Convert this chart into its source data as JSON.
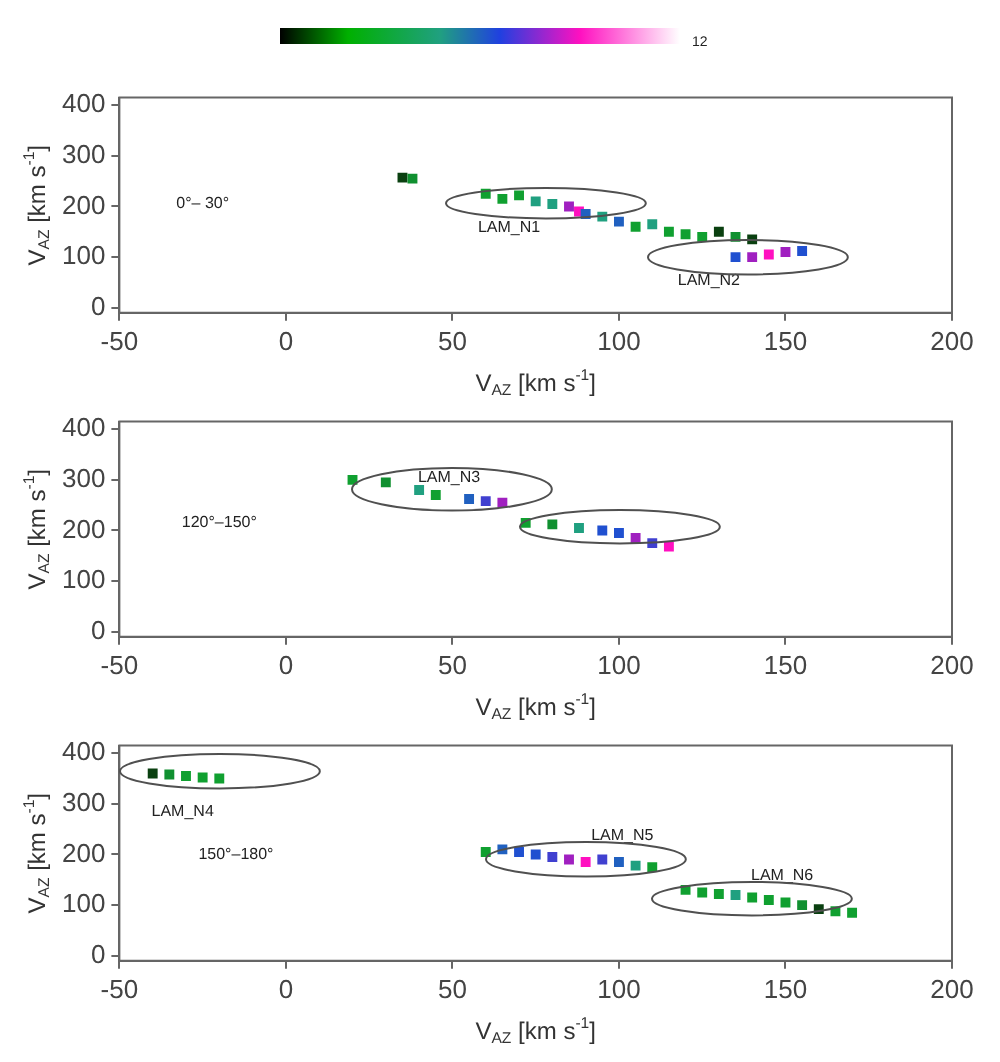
{
  "chart_data": [
    {
      "type": "other",
      "annotations": [
        "12"
      ]
    },
    {
      "type": "scatter",
      "xlabel": "V$_{AZ}$ [km s$^{-1}$]",
      "ylabel": "V$_{AZ}$ [km s$^{-1}$]",
      "xlim": [
        -50,
        200
      ],
      "xticks": [
        -50,
        0,
        50,
        100,
        150,
        200
      ],
      "ylim": [
        -10,
        415
      ],
      "yticks": [
        0,
        100,
        200,
        300,
        400
      ],
      "marker": "square",
      "series": [
        {
          "type": "scatter",
          "x": [
            35,
            38,
            60,
            65,
            70,
            75,
            80,
            85,
            88,
            90,
            95,
            100,
            105,
            110,
            115,
            120,
            125,
            130,
            135,
            140,
            135,
            140,
            145,
            150,
            155
          ],
          "values": [
            257,
            255,
            225,
            215,
            222,
            210,
            205,
            200,
            190,
            185,
            180,
            170,
            160,
            165,
            150,
            145,
            140,
            150,
            140,
            135,
            100,
            100,
            105,
            110,
            112
          ],
          "colors": [
            "#0a4010",
            "#109030",
            "#10a030",
            "#10a030",
            "#10a030",
            "#20a080",
            "#20a080",
            "#a020c0",
            "#ff10c0",
            "#2060c0",
            "#20a080",
            "#2060c0",
            "#10a030",
            "#20a080",
            "#10a030",
            "#10a030",
            "#10a030",
            "#0a4010",
            "#109030",
            "#0a4010",
            "#2050d0",
            "#a020c0",
            "#ff10c0",
            "#a020c0",
            "#2050d0"
          ]
        }
      ],
      "annotations": [
        "0°– 30°",
        "LAM_N1",
        "LAM_N2"
      ]
    },
    {
      "type": "scatter",
      "xlabel": "V$_{AZ}$ [km s$^{-1}$]",
      "ylabel": "V$_{AZ}$ [km s$^{-1}$]",
      "xlim": [
        -50,
        200
      ],
      "xticks": [
        -50,
        0,
        50,
        100,
        150,
        200
      ],
      "ylim": [
        -10,
        415
      ],
      "yticks": [
        0,
        100,
        200,
        300,
        400
      ],
      "marker": "square",
      "series": [
        {
          "type": "scatter",
          "x": [
            20,
            30,
            40,
            45,
            55,
            60,
            65,
            72,
            80,
            88,
            95,
            100,
            105,
            110,
            115
          ],
          "values": [
            300,
            295,
            280,
            270,
            262,
            258,
            255,
            215,
            212,
            205,
            200,
            195,
            185,
            175,
            168
          ],
          "colors": [
            "#10a030",
            "#109030",
            "#20a080",
            "#10a030",
            "#2060c0",
            "#4040d0",
            "#a020c0",
            "#10a030",
            "#109030",
            "#20a080",
            "#2050d0",
            "#2050d0",
            "#a020c0",
            "#4040d0",
            "#ff10c0"
          ]
        }
      ],
      "annotations": [
        "120°–150°",
        "LAM_N3"
      ]
    },
    {
      "type": "scatter",
      "xlabel": "V$_{AZ}$ [km s$^{-1}$]",
      "ylabel": "V$_{AZ}$ [km s$^{-1}$]",
      "xlim": [
        -50,
        200
      ],
      "xticks": [
        -50,
        0,
        50,
        100,
        150,
        200
      ],
      "ylim": [
        -10,
        415
      ],
      "yticks": [
        0,
        100,
        200,
        300,
        400
      ],
      "marker": "square",
      "series": [
        {
          "type": "scatter",
          "x": [
            -40,
            -35,
            -30,
            -25,
            -20,
            60,
            65,
            70,
            75,
            80,
            85,
            90,
            95,
            100,
            105,
            110,
            120,
            125,
            130,
            135,
            140,
            145,
            150,
            155,
            160,
            165,
            170
          ],
          "values": [
            360,
            358,
            355,
            352,
            350,
            205,
            210,
            205,
            200,
            195,
            190,
            185,
            190,
            185,
            178,
            175,
            130,
            125,
            122,
            120,
            115,
            110,
            105,
            100,
            92,
            88,
            85
          ],
          "colors": [
            "#0a4010",
            "#109030",
            "#10a030",
            "#10a030",
            "#10a030",
            "#10a030",
            "#2060c0",
            "#2050d0",
            "#2050d0",
            "#4040d0",
            "#a020c0",
            "#ff10c0",
            "#4040d0",
            "#2060c0",
            "#20a080",
            "#10a030",
            "#10a030",
            "#10a030",
            "#10a030",
            "#20a080",
            "#10a030",
            "#10a030",
            "#10a030",
            "#109030",
            "#0a4010",
            "#10a030",
            "#10a030"
          ]
        }
      ],
      "annotations": [
        "150°–180°",
        "LAM_N4",
        "LAM_N5",
        "LAM_N6"
      ]
    }
  ]
}
